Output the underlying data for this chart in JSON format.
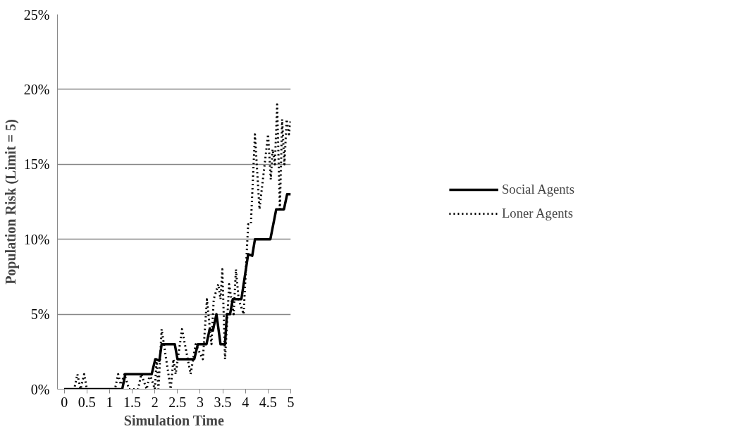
{
  "chart_data": {
    "type": "line",
    "xlabel": "Simulation Time",
    "ylabel": "Population Risk (Limit = 5)",
    "xlim": [
      -0.15,
      5
    ],
    "xticks": [
      0,
      0.5,
      1,
      1.5,
      2,
      2.5,
      3,
      3.5,
      4,
      4.5,
      5
    ],
    "ylim": [
      0,
      25
    ],
    "yticks": [
      {
        "value": 0,
        "label": "0%"
      },
      {
        "value": 5,
        "label": "5%"
      },
      {
        "value": 10,
        "label": "10%"
      },
      {
        "value": 15,
        "label": "15%"
      },
      {
        "value": 20,
        "label": "20%"
      },
      {
        "value": 25,
        "label": "25%"
      }
    ],
    "grid": "y",
    "legend": "right",
    "marker": "none",
    "series": [
      {
        "name": "Social Agents",
        "color": "#000000",
        "line_style": "solid",
        "x": [
          0,
          1.28,
          1.35,
          1.93,
          2.01,
          2.1,
          2.15,
          2.44,
          2.5,
          2.87,
          2.95,
          3.14,
          3.21,
          3.28,
          3.36,
          3.45,
          3.55,
          3.59,
          3.66,
          3.72,
          3.91,
          4.06,
          4.15,
          4.21,
          4.55,
          4.68,
          4.85,
          4.92,
          5
        ],
        "values": [
          0,
          0,
          1,
          1,
          2,
          1.9,
          3,
          3,
          2,
          2,
          3,
          3,
          4,
          3.9,
          5,
          3,
          3,
          5,
          5,
          6,
          6,
          9,
          8.9,
          10,
          10,
          12,
          12,
          13,
          13
        ]
      },
      {
        "name": "Loner Agents",
        "color": "#000000",
        "line_style": "dotted",
        "x": [
          0,
          0.22,
          0.29,
          0.36,
          0.44,
          0.5,
          1.12,
          1.19,
          1.25,
          1.33,
          1.43,
          1.63,
          1.7,
          1.82,
          1.89,
          2.0,
          2.04,
          2.08,
          2.15,
          2.3,
          2.35,
          2.41,
          2.46,
          2.6,
          2.79,
          2.9,
          3.06,
          3.15,
          3.25,
          3.3,
          3.4,
          3.45,
          3.49,
          3.55,
          3.64,
          3.74,
          3.79,
          3.85,
          3.96,
          4.06,
          4.12,
          4.21,
          4.31,
          4.5,
          4.56,
          4.6,
          4.65,
          4.7,
          4.76,
          4.81,
          4.86,
          4.91,
          4.96,
          5
        ],
        "values": [
          0,
          0,
          1,
          0,
          1,
          0,
          0,
          1,
          0.3,
          1,
          0,
          0,
          1,
          0,
          1,
          0,
          2,
          0,
          4,
          1,
          0,
          2,
          1,
          4,
          1,
          3,
          2,
          6,
          3,
          6,
          7,
          6,
          8,
          2,
          7,
          5,
          8,
          6,
          5,
          11,
          11,
          17,
          12,
          17,
          14,
          16,
          15,
          19,
          12,
          18,
          15,
          18,
          17,
          18
        ]
      }
    ]
  }
}
